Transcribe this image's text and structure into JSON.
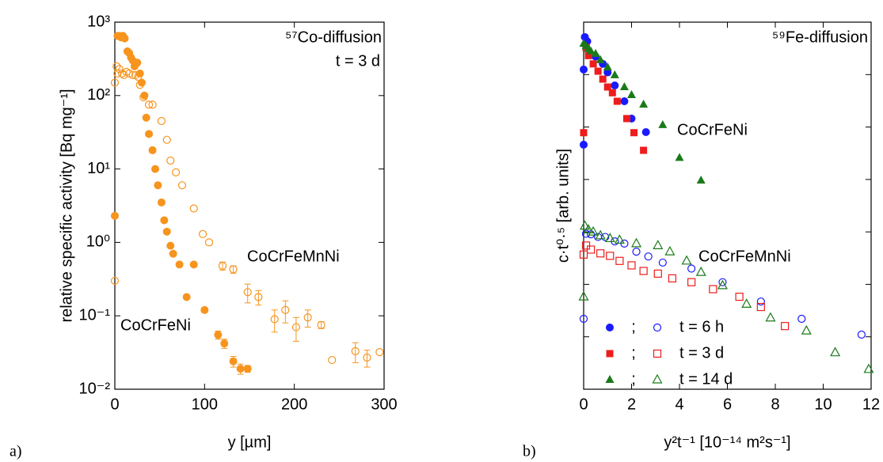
{
  "chart_data": [
    {
      "type": "scatter",
      "panel_label": "a)",
      "log_y": true,
      "xlabel": "y [µm]",
      "ylabel": "relative specific activity [Bq mg⁻¹]",
      "xlim": [
        0,
        300
      ],
      "xticks": [
        0,
        100,
        200,
        300
      ],
      "ylim": [
        0.01,
        1000
      ],
      "yticks": [
        {
          "value": 0.01,
          "label": "10⁻²"
        },
        {
          "value": 0.1,
          "label": "10⁻¹"
        },
        {
          "value": 1,
          "label": "10⁰"
        },
        {
          "value": 10,
          "label": "10¹"
        },
        {
          "value": 100,
          "label": "10²"
        },
        {
          "value": 1000,
          "label": "10³"
        }
      ],
      "show_ytick_labels": true,
      "annotations": [
        {
          "text": "⁵⁷Co-diffusion",
          "color": "#f7941d"
        },
        {
          "text": "t = 3 d",
          "color": "#000000"
        }
      ],
      "series": [
        {
          "name": "CoCrFeNi",
          "color": "#f7941d",
          "marker": "circle",
          "filled": true,
          "x": [
            0,
            3,
            5,
            7,
            9,
            11,
            14,
            16,
            18,
            20,
            22,
            25,
            28,
            30,
            33,
            35,
            38,
            42,
            45,
            48,
            52,
            55,
            58,
            62,
            65,
            72,
            80,
            88,
            100,
            115,
            122,
            132,
            140,
            148
          ],
          "values": [
            2.3,
            650,
            650,
            620,
            650,
            600,
            400,
            380,
            330,
            300,
            250,
            280,
            200,
            150,
            100,
            50,
            30,
            18,
            10,
            6,
            3.5,
            2,
            1.4,
            0.9,
            0.7,
            0.5,
            0.18,
            0.5,
            0.12,
            0.055,
            0.042,
            0.024,
            0.019,
            0.019
          ],
          "errors": [
            null,
            null,
            null,
            null,
            null,
            null,
            null,
            null,
            null,
            null,
            null,
            null,
            null,
            null,
            null,
            null,
            null,
            null,
            null,
            null,
            null,
            null,
            null,
            null,
            null,
            null,
            null,
            null,
            null,
            0.007,
            0.006,
            0.004,
            0.003,
            0.002
          ]
        },
        {
          "name": "CoCrFeMnNi",
          "color": "#f7941d",
          "marker": "circle",
          "filled": false,
          "x": [
            0,
            0,
            2,
            3,
            5,
            8,
            10,
            13,
            16,
            20,
            23,
            26,
            28,
            32,
            38,
            42,
            52,
            58,
            62,
            68,
            75,
            88,
            98,
            105,
            120,
            132,
            148,
            160,
            178,
            190,
            202,
            215,
            230,
            242,
            268,
            281,
            295
          ],
          "values": [
            0.3,
            150,
            250,
            200,
            230,
            200,
            190,
            210,
            200,
            190,
            190,
            180,
            140,
            95,
            75,
            75,
            45,
            25,
            13,
            9,
            6,
            2.9,
            1.3,
            1.0,
            0.48,
            0.43,
            0.21,
            0.18,
            0.09,
            0.12,
            0.07,
            0.095,
            0.075,
            0.025,
            0.033,
            0.027,
            0.032
          ],
          "errors": [
            null,
            null,
            null,
            null,
            null,
            null,
            null,
            null,
            null,
            null,
            null,
            null,
            null,
            null,
            null,
            null,
            null,
            null,
            null,
            null,
            null,
            null,
            null,
            null,
            0.06,
            0.05,
            0.06,
            0.04,
            0.03,
            0.04,
            0.025,
            0.025,
            0.008,
            null,
            0.01,
            0.007,
            null
          ]
        }
      ]
    },
    {
      "type": "scatter",
      "panel_label": "b)",
      "log_y": true,
      "xlabel": "y²t⁻¹ [10⁻¹⁴ m²s⁻¹]",
      "ylabel": "c·t⁰·⁵ [arb. units]",
      "xlim": [
        0,
        12
      ],
      "xticks": [
        0,
        2,
        4,
        6,
        8,
        10,
        12
      ],
      "ylim": [
        1e-07,
        1
      ],
      "yticks": [
        1e-07,
        1e-06,
        1e-05,
        0.0001,
        0.001,
        0.01,
        0.1,
        1
      ],
      "show_ytick_labels": false,
      "annotations": [
        {
          "text": "⁵⁹Fe-diffusion",
          "color": "#1a7a1a"
        },
        {
          "text": "CoCrFeNi",
          "color": "#000000"
        },
        {
          "text": "CoCrFeMnNi",
          "color": "#000000"
        }
      ],
      "legend_separator": ";",
      "series": [
        {
          "name": "t = 6 h",
          "color": "#1a1aff",
          "marker": "circle",
          "x": [
            0.05,
            0.15,
            0.1,
            0,
            0,
            0.5,
            0.8,
            1.0,
            1.3,
            1.7,
            2.0,
            2.6
          ],
          "values": [
            0.52,
            0.43,
            0.35,
            0.0046,
            0.125,
            0.22,
            0.16,
            0.11,
            0.062,
            0.031,
            0.0145,
            0.008
          ],
          "open_x": [
            0,
            0.1,
            0.3,
            0.6,
            0.9,
            1.3,
            1.7,
            2.2,
            2.7,
            3.3,
            4.5,
            5.8,
            7.4,
            9.1,
            11.6
          ],
          "open_values": [
            2.2e-06,
            9.2e-05,
            9e-05,
            8e-05,
            8e-05,
            6.6e-05,
            6e-05,
            4.2e-05,
            3.4e-05,
            2.6e-05,
            2e-05,
            1.1e-05,
            4.7e-06,
            2.2e-06,
            1.1e-06
          ]
        },
        {
          "name": "t = 3 d",
          "color": "#ee1c1c",
          "marker": "square",
          "x": [
            0,
            0.1,
            0.2,
            0.4,
            0.6,
            0.8,
            1.0,
            1.2,
            1.4,
            1.8,
            2.1,
            2.5
          ],
          "values": [
            0.0078,
            0.33,
            0.23,
            0.16,
            0.116,
            0.082,
            0.058,
            0.045,
            0.031,
            0.0145,
            0.0078,
            0.0036
          ],
          "open_x": [
            0,
            0.1,
            0.3,
            0.7,
            1.1,
            1.5,
            2.0,
            2.5,
            3.1,
            3.7,
            4.5,
            5.4,
            6.5,
            7.4,
            8.4
          ],
          "open_values": [
            3.7e-05,
            5.5e-05,
            4.6e-05,
            3.9e-05,
            3.5e-05,
            2.8e-05,
            2.3e-05,
            1.8e-05,
            1.6e-05,
            1.3e-05,
            1.1e-05,
            8.1e-06,
            5.8e-06,
            3.7e-06,
            1.6e-06
          ]
        },
        {
          "name": "t = 14 d",
          "color": "#1a7a1a",
          "marker": "triangle",
          "x": [
            0,
            0.1,
            0.2,
            0.3,
            0.5,
            0.7,
            1.0,
            1.3,
            1.7,
            2.0,
            2.5,
            3.3,
            4.0,
            4.9
          ],
          "values": [
            0.39,
            0.35,
            0.31,
            0.28,
            0.25,
            0.19,
            0.138,
            0.098,
            0.058,
            0.041,
            0.027,
            0.011,
            0.0026,
            0.00096
          ],
          "open_x": [
            0,
            0.05,
            0.2,
            0.4,
            0.7,
            1.1,
            1.5,
            2.2,
            3.1,
            3.6,
            4.3,
            4.9,
            5.8,
            6.8,
            7.8,
            9.3,
            10.5,
            11.9
          ],
          "open_values": [
            5.8e-06,
            0.00013,
            0.00011,
            0.0001,
            8.5e-05,
            7.5e-05,
            7e-05,
            6e-05,
            5.5e-05,
            4.2e-05,
            2.8e-05,
            1.7e-05,
            9.5e-06,
            4.2e-06,
            2.3e-06,
            1.3e-06,
            5e-07,
            2.4e-07
          ]
        }
      ]
    }
  ]
}
